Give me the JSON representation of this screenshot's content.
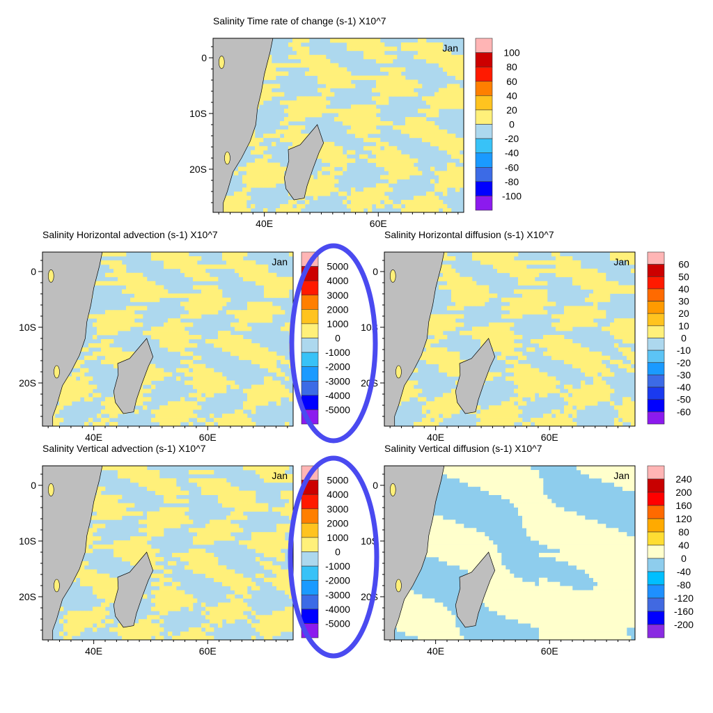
{
  "chart_data": [
    {
      "type": "heatmap",
      "title": "Salinity Time rate of change (s-1) X10^7",
      "month": "Jan",
      "xlim": [
        31,
        75
      ],
      "ylim": [
        -27.75,
        3.5
      ],
      "xticks": [
        "40E",
        "60E"
      ],
      "yticks": [
        "0",
        "10S",
        "20S"
      ],
      "levels": [
        "100",
        "80",
        "60",
        "40",
        "20",
        "0",
        "-20",
        "-40",
        "-60",
        "-80",
        "-100"
      ],
      "colors": [
        "#FFB5B5",
        "#CC0000",
        "#FF1A00",
        "#FF7F00",
        "#FFC31F",
        "#FFF07A",
        "#ADD8EE",
        "#38C2F7",
        "#1A9AFF",
        "#3C6BE6",
        "#0000FF",
        "#8C1AEE"
      ],
      "pos_color": "#FFF07A",
      "neg_color": "#ADD8EE",
      "pos_fraction": 0.45
    },
    {
      "type": "heatmap",
      "title": "Salinity Horizontal advection (s-1) X10^7",
      "month": "Jan",
      "xlim": [
        31,
        75
      ],
      "ylim": [
        -27.75,
        3.5
      ],
      "xticks": [
        "40E",
        "60E"
      ],
      "yticks": [
        "0",
        "10S",
        "20S"
      ],
      "levels": [
        "5000",
        "4000",
        "3000",
        "2000",
        "1000",
        "0",
        "-1000",
        "-2000",
        "-3000",
        "-4000",
        "-5000"
      ],
      "colors": [
        "#FFB5B5",
        "#CC0000",
        "#FF1A00",
        "#FF7F00",
        "#FFC31F",
        "#FFF07A",
        "#ADD8EE",
        "#38C2F7",
        "#1A9AFF",
        "#3C6BE6",
        "#0000FF",
        "#8C1AEE"
      ],
      "pos_color": "#FFF07A",
      "neg_color": "#ADD8EE",
      "pos_fraction": 0.45
    },
    {
      "type": "heatmap",
      "title": "Salinity Horizontal diffusion (s-1) X10^7",
      "month": "Jan",
      "xlim": [
        31,
        75
      ],
      "ylim": [
        -27.75,
        3.5
      ],
      "xticks": [
        "40E",
        "60E"
      ],
      "yticks": [
        "0",
        "10S",
        "20S"
      ],
      "levels": [
        "60",
        "50",
        "40",
        "30",
        "20",
        "10",
        "0",
        "-10",
        "-20",
        "-30",
        "-40",
        "-50",
        "-60"
      ],
      "colors": [
        "#FFB5B5",
        "#CC0000",
        "#FF1A00",
        "#FF6A00",
        "#FF9A00",
        "#FFC31F",
        "#FFF07A",
        "#ADD8EE",
        "#5CC4F5",
        "#1A9AFF",
        "#3C6BE6",
        "#1A3AF0",
        "#0000FF",
        "#8C1AEE"
      ],
      "pos_color": "#FFF07A",
      "neg_color": "#ADD8EE",
      "pos_fraction": 0.5
    },
    {
      "type": "heatmap",
      "title": "Salinity Vertical advection (s-1) X10^7",
      "month": "Jan",
      "xlim": [
        31,
        75
      ],
      "ylim": [
        -27.75,
        3.5
      ],
      "xticks": [
        "40E",
        "60E"
      ],
      "yticks": [
        "0",
        "10S",
        "20S"
      ],
      "levels": [
        "5000",
        "4000",
        "3000",
        "2000",
        "1000",
        "0",
        "-1000",
        "-2000",
        "-3000",
        "-4000",
        "-5000"
      ],
      "colors": [
        "#FFB5B5",
        "#CC0000",
        "#FF1A00",
        "#FF7F00",
        "#FFC31F",
        "#FFF07A",
        "#ADD8EE",
        "#38C2F7",
        "#1A9AFF",
        "#3C6BE6",
        "#0000FF",
        "#8C1AEE"
      ],
      "pos_color": "#FFF07A",
      "neg_color": "#ADD8EE",
      "pos_fraction": 0.45
    },
    {
      "type": "heatmap",
      "title": "Salinity Vertical diffusion (s-1) X10^7",
      "month": "Jan",
      "xlim": [
        31,
        75
      ],
      "ylim": [
        -27.75,
        3.5
      ],
      "xticks": [
        "40E",
        "60E"
      ],
      "yticks": [
        "0",
        "10S",
        "20S"
      ],
      "levels": [
        "240",
        "200",
        "160",
        "120",
        "80",
        "40",
        "0",
        "-40",
        "-80",
        "-120",
        "-160",
        "-200"
      ],
      "colors": [
        "#FFB5B5",
        "#C80000",
        "#FF0000",
        "#FF6A00",
        "#FFAA00",
        "#FFDD33",
        "#FFFFCC",
        "#8ECDED",
        "#00BFFF",
        "#1E90FF",
        "#4169E1",
        "#0000FF",
        "#8A2BE2"
      ],
      "pos_color": "#FFFFCC",
      "neg_color": "#8ECDED",
      "pos_fraction": 0.5
    }
  ]
}
